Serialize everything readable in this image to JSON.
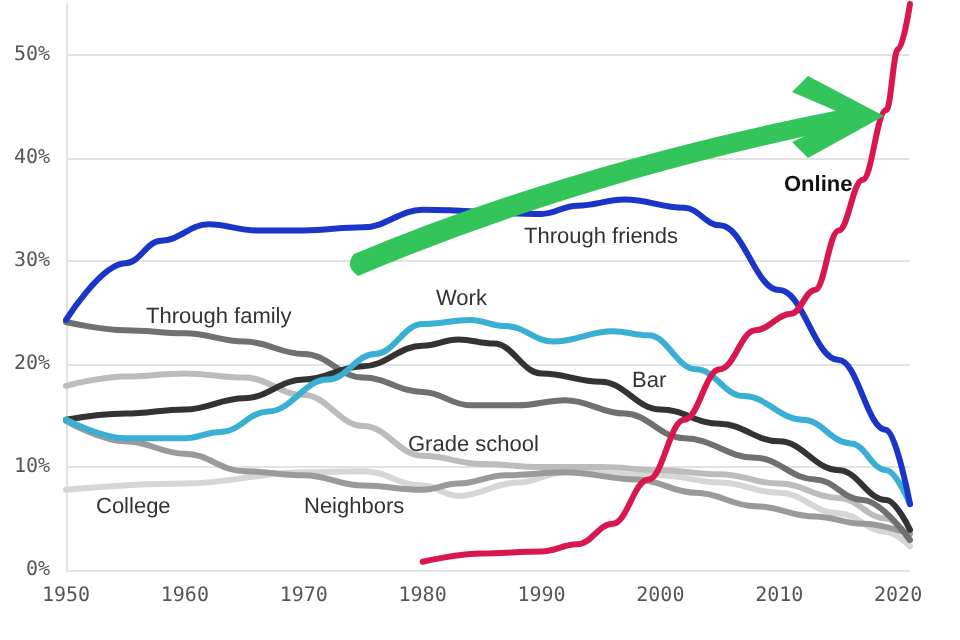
{
  "chart_data": {
    "type": "line",
    "xlim": [
      1950,
      2021
    ],
    "xticks": [
      1950,
      1960,
      1970,
      1980,
      1990,
      2000,
      2010,
      2020
    ],
    "ylim": [
      0,
      55
    ],
    "yticks": [
      {
        "value": 0,
        "label": "0%"
      },
      {
        "value": 10,
        "label": "10%"
      },
      {
        "value": 20,
        "label": "20%"
      },
      {
        "value": 30,
        "label": "30%"
      },
      {
        "value": 40,
        "label": "40%"
      },
      {
        "value": 50,
        "label": "50%"
      }
    ],
    "grid": "y",
    "marker": "none",
    "line_style": "solid",
    "series": [
      {
        "color": "#d6d6d6",
        "x": [
          1950,
          1960,
          1970,
          1975,
          1980,
          1983,
          1988,
          1992,
          2000,
          2005,
          2010,
          2015,
          2019,
          2021
        ],
        "values": [
          7.8,
          8.4,
          9.5,
          9.6,
          8.2,
          7.2,
          8.5,
          9.5,
          9.2,
          8.5,
          7.5,
          5.5,
          3.7,
          2.3
        ]
      },
      {
        "color": "#bcbcbc",
        "x": [
          1950,
          1955,
          1960,
          1965,
          1970,
          1975,
          1980,
          1985,
          1990,
          1995,
          2000,
          2005,
          2010,
          2015,
          2019,
          2021
        ],
        "values": [
          17.9,
          18.8,
          19.1,
          18.7,
          17,
          14,
          11.1,
          10.3,
          10,
          10,
          9.7,
          9.3,
          8.4,
          7,
          5,
          3
        ]
      },
      {
        "color": "#9a9a9a",
        "x": [
          1950,
          1955,
          1960,
          1965,
          1970,
          1975,
          1980,
          1983,
          1987,
          1992,
          1998,
          2003,
          2008,
          2013,
          2017,
          2021
        ],
        "values": [
          14.5,
          12.5,
          11.3,
          9.6,
          9.2,
          8.2,
          7.8,
          8.4,
          9.2,
          9.5,
          8.8,
          7.5,
          6.2,
          5.2,
          4.5,
          3.5
        ]
      },
      {
        "color": "#707070",
        "x": [
          1950,
          1955,
          1960,
          1965,
          1970,
          1975,
          1980,
          1984,
          1988,
          1992,
          1997,
          2002,
          2008,
          2013,
          2017,
          2021
        ],
        "values": [
          24.1,
          23.3,
          23,
          22.2,
          21,
          18.7,
          17.3,
          16,
          16,
          16.5,
          15.2,
          12.8,
          10.9,
          8.8,
          6.8,
          2.9
        ]
      },
      {
        "color": "#333333",
        "x": [
          1950,
          1955,
          1960,
          1965,
          1970,
          1975,
          1980,
          1983,
          1986,
          1990,
          1995,
          2000,
          2005,
          2010,
          2015,
          2019,
          2021
        ],
        "values": [
          14.6,
          15.2,
          15.6,
          16.7,
          18.5,
          19.8,
          21.8,
          22.4,
          22,
          19.1,
          18.3,
          15.6,
          14.2,
          12.5,
          9.7,
          6.8,
          3.9
        ]
      },
      {
        "color": "#3aafd4",
        "x": [
          1950,
          1955,
          1960,
          1963,
          1967,
          1972,
          1976,
          1980,
          1984,
          1987,
          1991,
          1996,
          1999,
          2003,
          2007,
          2012,
          2016,
          2019,
          2021
        ],
        "values": [
          14.6,
          12.8,
          12.8,
          13.4,
          15.4,
          18.5,
          21,
          23.9,
          24.3,
          23.7,
          22.2,
          23.2,
          22.8,
          19.5,
          16.9,
          14.6,
          12.3,
          9.7,
          6.4
        ]
      },
      {
        "color": "#1a35c8",
        "x": [
          1950,
          1955,
          1958,
          1962,
          1966,
          1970,
          1975,
          1980,
          1990,
          1993,
          1997,
          2002,
          2005,
          2010,
          2015,
          2019,
          2021
        ],
        "values": [
          24.3,
          29.8,
          32,
          33.6,
          33,
          33,
          33.3,
          35,
          34.6,
          35.4,
          36,
          35.2,
          33.5,
          27.2,
          20.4,
          13.6,
          6.4
        ]
      },
      {
        "color": "#d8174e",
        "x": [
          1980,
          1985,
          1990,
          1993,
          1996,
          1999,
          2002,
          2005,
          2008,
          2011,
          2013,
          2015,
          2017,
          2019,
          2020,
          2021
        ],
        "values": [
          0.8,
          1.6,
          1.8,
          2.5,
          4.5,
          8.8,
          14.6,
          19.5,
          23.3,
          24.9,
          27.2,
          33,
          37.9,
          44.7,
          50.6,
          55
        ]
      }
    ],
    "annotations": [
      "Through friends",
      "Online",
      "Work",
      "Bar",
      "Through family",
      "Grade school",
      "College",
      "Neighbors"
    ]
  }
}
